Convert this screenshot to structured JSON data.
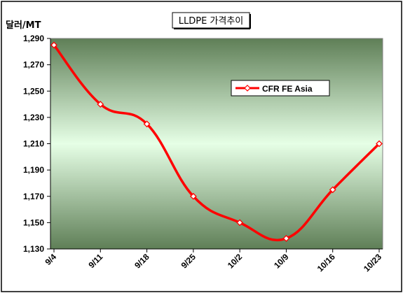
{
  "chart_data": {
    "type": "line",
    "title": "LLDPE 가격추이",
    "ylabel": "달러/MT",
    "xlabel": "",
    "categories": [
      "9/4",
      "9/11",
      "9/18",
      "9/25",
      "10/2",
      "10/9",
      "10/16",
      "10/23"
    ],
    "series": [
      {
        "name": "CFR FE Asia",
        "values": [
          1285,
          1240,
          1225,
          1170,
          1150,
          1138,
          1175,
          1210
        ],
        "color": "#ff0000"
      }
    ],
    "ylim": [
      1130,
      1290
    ],
    "yticks": [
      1130,
      1150,
      1170,
      1190,
      1210,
      1230,
      1250,
      1270,
      1290
    ],
    "yticklabels": [
      "1,130",
      "1,150",
      "1,170",
      "1,190",
      "1,210",
      "1,230",
      "1,250",
      "1,270",
      "1,290"
    ],
    "grid": false,
    "legend_position": "top-right",
    "plot_gradient": [
      "#5f7f57",
      "#e6ffe6"
    ]
  }
}
